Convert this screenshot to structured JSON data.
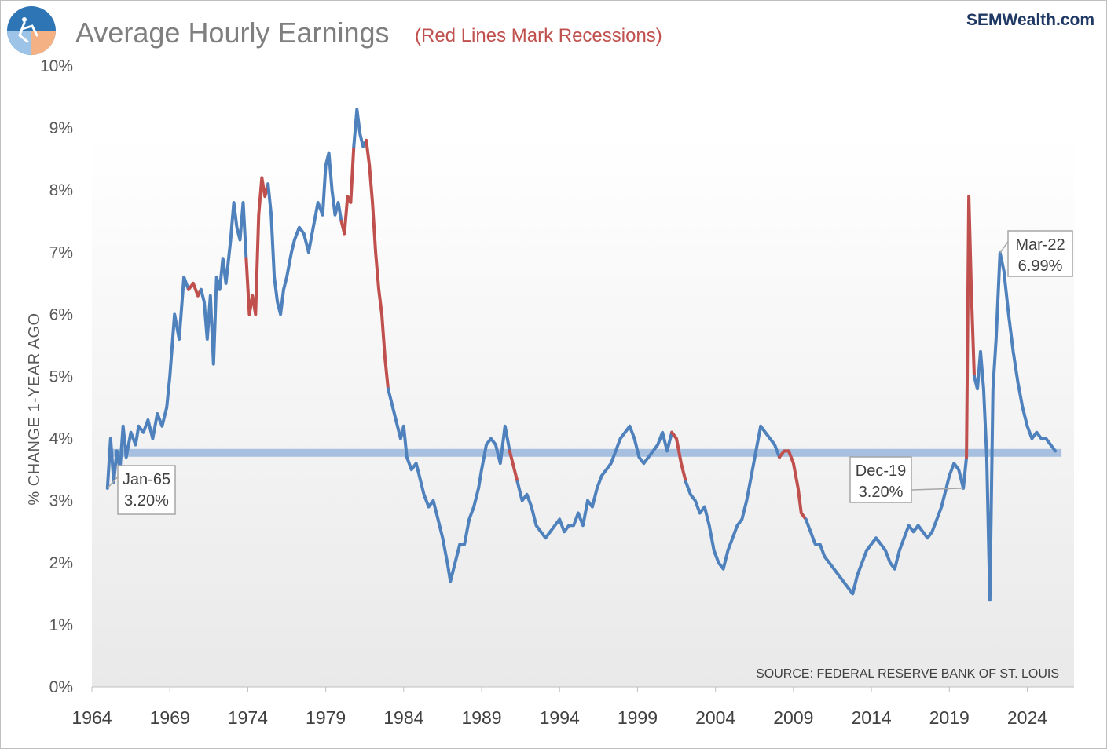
{
  "header": {
    "title": "Average Hourly Earnings",
    "subtitle": "(Red Lines Mark Recessions)",
    "brand": "SEMWealth.com",
    "logo_icon": "sem-logo-icon"
  },
  "colors": {
    "line": "#4f81bd",
    "recession": "#c0504d",
    "average_band": "#9bb7dc",
    "plot_bg_top": "#ffffff",
    "plot_bg_bottom": "#e9e9e9",
    "title": "#7f7f7f",
    "brand": "#1f3864"
  },
  "chart_data": {
    "type": "line",
    "title": "Average Hourly Earnings",
    "subtitle": "(Red Lines Mark Recessions)",
    "xlabel": "",
    "ylabel": "% CHANGE 1-YEAR AGO",
    "xlim": [
      1964,
      2027
    ],
    "ylim": [
      0,
      10
    ],
    "x_ticks": [
      "1964",
      "1969",
      "1974",
      "1979",
      "1984",
      "1989",
      "1994",
      "1999",
      "2004",
      "2009",
      "2014",
      "2019",
      "2024"
    ],
    "y_ticks": [
      "0%",
      "1%",
      "2%",
      "3%",
      "4%",
      "5%",
      "6%",
      "7%",
      "8%",
      "9%",
      "10%"
    ],
    "grid": false,
    "legend": "none",
    "average_line": 3.77,
    "series": [
      {
        "points": [
          [
            1965.0,
            3.2
          ],
          [
            1965.2,
            4.0
          ],
          [
            1965.4,
            3.3
          ],
          [
            1965.6,
            3.8
          ],
          [
            1965.8,
            3.5
          ],
          [
            1966.0,
            4.2
          ],
          [
            1966.2,
            3.7
          ],
          [
            1966.5,
            4.1
          ],
          [
            1966.8,
            3.9
          ],
          [
            1967.0,
            4.2
          ],
          [
            1967.3,
            4.1
          ],
          [
            1967.6,
            4.3
          ],
          [
            1967.9,
            4.0
          ],
          [
            1968.2,
            4.4
          ],
          [
            1968.5,
            4.2
          ],
          [
            1968.8,
            4.5
          ],
          [
            1969.0,
            5.0
          ],
          [
            1969.3,
            6.0
          ],
          [
            1969.6,
            5.6
          ],
          [
            1969.9,
            6.6
          ],
          [
            1970.2,
            6.4
          ],
          [
            1970.5,
            6.5
          ],
          [
            1970.8,
            6.3
          ],
          [
            1971.0,
            6.4
          ],
          [
            1971.2,
            6.2
          ],
          [
            1971.4,
            5.6
          ],
          [
            1971.6,
            6.3
          ],
          [
            1971.8,
            5.2
          ],
          [
            1972.0,
            6.6
          ],
          [
            1972.2,
            6.4
          ],
          [
            1972.4,
            6.9
          ],
          [
            1972.6,
            6.5
          ],
          [
            1972.9,
            7.2
          ],
          [
            1973.1,
            7.8
          ],
          [
            1973.3,
            7.4
          ],
          [
            1973.5,
            7.2
          ],
          [
            1973.7,
            7.8
          ],
          [
            1973.9,
            6.9
          ],
          [
            1974.1,
            6.0
          ],
          [
            1974.3,
            6.3
          ],
          [
            1974.5,
            6.0
          ],
          [
            1974.7,
            7.6
          ],
          [
            1974.9,
            8.2
          ],
          [
            1975.1,
            7.9
          ],
          [
            1975.3,
            8.1
          ],
          [
            1975.5,
            7.6
          ],
          [
            1975.7,
            6.6
          ],
          [
            1975.9,
            6.2
          ],
          [
            1976.1,
            6.0
          ],
          [
            1976.3,
            6.4
          ],
          [
            1976.5,
            6.6
          ],
          [
            1976.8,
            7.0
          ],
          [
            1977.0,
            7.2
          ],
          [
            1977.3,
            7.4
          ],
          [
            1977.6,
            7.3
          ],
          [
            1977.9,
            7.0
          ],
          [
            1978.2,
            7.4
          ],
          [
            1978.5,
            7.8
          ],
          [
            1978.8,
            7.6
          ],
          [
            1979.0,
            8.4
          ],
          [
            1979.2,
            8.6
          ],
          [
            1979.4,
            8.0
          ],
          [
            1979.6,
            7.6
          ],
          [
            1979.8,
            7.8
          ],
          [
            1980.0,
            7.5
          ],
          [
            1980.2,
            7.3
          ],
          [
            1980.4,
            7.9
          ],
          [
            1980.6,
            7.8
          ],
          [
            1980.8,
            8.7
          ],
          [
            1981.0,
            9.3
          ],
          [
            1981.2,
            8.9
          ],
          [
            1981.4,
            8.7
          ],
          [
            1981.6,
            8.8
          ],
          [
            1981.8,
            8.4
          ],
          [
            1982.0,
            7.8
          ],
          [
            1982.2,
            7.0
          ],
          [
            1982.4,
            6.4
          ],
          [
            1982.6,
            6.0
          ],
          [
            1982.8,
            5.3
          ],
          [
            1983.0,
            4.8
          ],
          [
            1983.2,
            4.6
          ],
          [
            1983.5,
            4.3
          ],
          [
            1983.8,
            4.0
          ],
          [
            1984.0,
            4.2
          ],
          [
            1984.2,
            3.7
          ],
          [
            1984.5,
            3.5
          ],
          [
            1984.8,
            3.6
          ],
          [
            1985.0,
            3.4
          ],
          [
            1985.3,
            3.1
          ],
          [
            1985.6,
            2.9
          ],
          [
            1985.9,
            3.0
          ],
          [
            1986.2,
            2.7
          ],
          [
            1986.5,
            2.4
          ],
          [
            1986.8,
            2.0
          ],
          [
            1987.0,
            1.7
          ],
          [
            1987.3,
            2.0
          ],
          [
            1987.6,
            2.3
          ],
          [
            1987.9,
            2.3
          ],
          [
            1988.2,
            2.7
          ],
          [
            1988.5,
            2.9
          ],
          [
            1988.8,
            3.2
          ],
          [
            1989.0,
            3.5
          ],
          [
            1989.3,
            3.9
          ],
          [
            1989.6,
            4.0
          ],
          [
            1989.9,
            3.9
          ],
          [
            1990.2,
            3.6
          ],
          [
            1990.5,
            4.2
          ],
          [
            1990.8,
            3.8
          ],
          [
            1991.0,
            3.6
          ],
          [
            1991.3,
            3.3
          ],
          [
            1991.6,
            3.0
          ],
          [
            1991.9,
            3.1
          ],
          [
            1992.2,
            2.9
          ],
          [
            1992.5,
            2.6
          ],
          [
            1992.8,
            2.5
          ],
          [
            1993.1,
            2.4
          ],
          [
            1993.4,
            2.5
          ],
          [
            1993.7,
            2.6
          ],
          [
            1994.0,
            2.7
          ],
          [
            1994.3,
            2.5
          ],
          [
            1994.6,
            2.6
          ],
          [
            1994.9,
            2.6
          ],
          [
            1995.2,
            2.8
          ],
          [
            1995.5,
            2.6
          ],
          [
            1995.8,
            3.0
          ],
          [
            1996.1,
            2.9
          ],
          [
            1996.4,
            3.2
          ],
          [
            1996.7,
            3.4
          ],
          [
            1997.0,
            3.5
          ],
          [
            1997.3,
            3.6
          ],
          [
            1997.6,
            3.8
          ],
          [
            1997.9,
            4.0
          ],
          [
            1998.2,
            4.1
          ],
          [
            1998.5,
            4.2
          ],
          [
            1998.8,
            4.0
          ],
          [
            1999.1,
            3.7
          ],
          [
            1999.4,
            3.6
          ],
          [
            1999.7,
            3.7
          ],
          [
            2000.0,
            3.8
          ],
          [
            2000.3,
            3.9
          ],
          [
            2000.6,
            4.1
          ],
          [
            2000.9,
            3.8
          ],
          [
            2001.2,
            4.1
          ],
          [
            2001.5,
            4.0
          ],
          [
            2001.8,
            3.6
          ],
          [
            2002.1,
            3.3
          ],
          [
            2002.4,
            3.1
          ],
          [
            2002.7,
            3.0
          ],
          [
            2003.0,
            2.8
          ],
          [
            2003.3,
            2.9
          ],
          [
            2003.6,
            2.6
          ],
          [
            2003.9,
            2.2
          ],
          [
            2004.2,
            2.0
          ],
          [
            2004.5,
            1.9
          ],
          [
            2004.8,
            2.2
          ],
          [
            2005.1,
            2.4
          ],
          [
            2005.4,
            2.6
          ],
          [
            2005.7,
            2.7
          ],
          [
            2006.0,
            3.0
          ],
          [
            2006.3,
            3.4
          ],
          [
            2006.6,
            3.8
          ],
          [
            2006.9,
            4.2
          ],
          [
            2007.2,
            4.1
          ],
          [
            2007.5,
            4.0
          ],
          [
            2007.8,
            3.9
          ],
          [
            2008.1,
            3.7
          ],
          [
            2008.4,
            3.8
          ],
          [
            2008.7,
            3.8
          ],
          [
            2009.0,
            3.6
          ],
          [
            2009.3,
            3.2
          ],
          [
            2009.5,
            2.8
          ],
          [
            2009.8,
            2.7
          ],
          [
            2010.1,
            2.5
          ],
          [
            2010.4,
            2.3
          ],
          [
            2010.7,
            2.3
          ],
          [
            2011.0,
            2.1
          ],
          [
            2011.3,
            2.0
          ],
          [
            2011.6,
            1.9
          ],
          [
            2011.9,
            1.8
          ],
          [
            2012.2,
            1.7
          ],
          [
            2012.5,
            1.6
          ],
          [
            2012.8,
            1.5
          ],
          [
            2013.1,
            1.8
          ],
          [
            2013.4,
            2.0
          ],
          [
            2013.7,
            2.2
          ],
          [
            2014.0,
            2.3
          ],
          [
            2014.3,
            2.4
          ],
          [
            2014.6,
            2.3
          ],
          [
            2014.9,
            2.2
          ],
          [
            2015.2,
            2.0
          ],
          [
            2015.5,
            1.9
          ],
          [
            2015.8,
            2.2
          ],
          [
            2016.1,
            2.4
          ],
          [
            2016.4,
            2.6
          ],
          [
            2016.7,
            2.5
          ],
          [
            2017.0,
            2.6
          ],
          [
            2017.3,
            2.5
          ],
          [
            2017.6,
            2.4
          ],
          [
            2017.9,
            2.5
          ],
          [
            2018.2,
            2.7
          ],
          [
            2018.5,
            2.9
          ],
          [
            2018.8,
            3.2
          ],
          [
            2019.0,
            3.4
          ],
          [
            2019.3,
            3.6
          ],
          [
            2019.6,
            3.5
          ],
          [
            2019.9,
            3.2
          ],
          [
            2020.1,
            3.7
          ],
          [
            2020.25,
            7.9
          ],
          [
            2020.4,
            6.5
          ],
          [
            2020.6,
            5.0
          ],
          [
            2020.8,
            4.8
          ],
          [
            2021.0,
            5.4
          ],
          [
            2021.2,
            4.8
          ],
          [
            2021.4,
            3.7
          ],
          [
            2021.6,
            1.4
          ],
          [
            2021.8,
            4.8
          ],
          [
            2022.0,
            5.6
          ],
          [
            2022.25,
            6.99
          ],
          [
            2022.5,
            6.7
          ],
          [
            2022.8,
            6.0
          ],
          [
            2023.1,
            5.4
          ],
          [
            2023.4,
            4.9
          ],
          [
            2023.7,
            4.5
          ],
          [
            2024.0,
            4.2
          ],
          [
            2024.3,
            4.0
          ],
          [
            2024.6,
            4.1
          ],
          [
            2024.9,
            4.0
          ],
          [
            2025.2,
            4.0
          ],
          [
            2025.5,
            3.9
          ],
          [
            2025.8,
            3.8
          ]
        ]
      }
    ],
    "recessions": [
      [
        1970.0,
        1970.9
      ],
      [
        1973.9,
        1975.2
      ],
      [
        1980.0,
        1980.6
      ],
      [
        1981.5,
        1982.9
      ],
      [
        1990.6,
        1991.2
      ],
      [
        2001.2,
        2001.9
      ],
      [
        2007.9,
        2009.5
      ],
      [
        2020.1,
        2020.4
      ]
    ],
    "annotations": [
      {
        "label": "Jan-65",
        "value": "3.20%",
        "x": 1965.0,
        "y": 3.2
      },
      {
        "label": "Dec-19",
        "value": "3.20%",
        "x": 2019.9,
        "y": 3.2
      },
      {
        "label": "Mar-22",
        "value": "6.99%",
        "x": 2022.25,
        "y": 6.99
      }
    ],
    "source": "SOURCE:  FEDERAL RESERVE BANK OF ST. LOUIS"
  }
}
